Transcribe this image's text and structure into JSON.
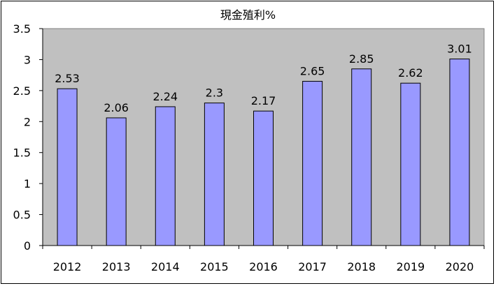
{
  "chart_data": {
    "type": "bar",
    "title": "現金殖利%",
    "categories": [
      "2012",
      "2013",
      "2014",
      "2015",
      "2016",
      "2017",
      "2018",
      "2019",
      "2020"
    ],
    "values": [
      2.53,
      2.06,
      2.24,
      2.3,
      2.17,
      2.65,
      2.85,
      2.62,
      3.01
    ],
    "data_labels": [
      "2.53",
      "2.06",
      "2.24",
      "2.3",
      "2.17",
      "2.65",
      "2.85",
      "2.62",
      "3.01"
    ],
    "y_ticks": [
      "0",
      "0.5",
      "1",
      "1.5",
      "2",
      "2.5",
      "3",
      "3.5"
    ],
    "xlabel": "",
    "ylabel": "",
    "ylim": [
      0,
      3.5
    ],
    "grid": false,
    "legend": "none",
    "colors": {
      "bar_fill": "#9999ff",
      "bar_stroke": "#000000",
      "plot_background": "#c0c0c0"
    }
  }
}
